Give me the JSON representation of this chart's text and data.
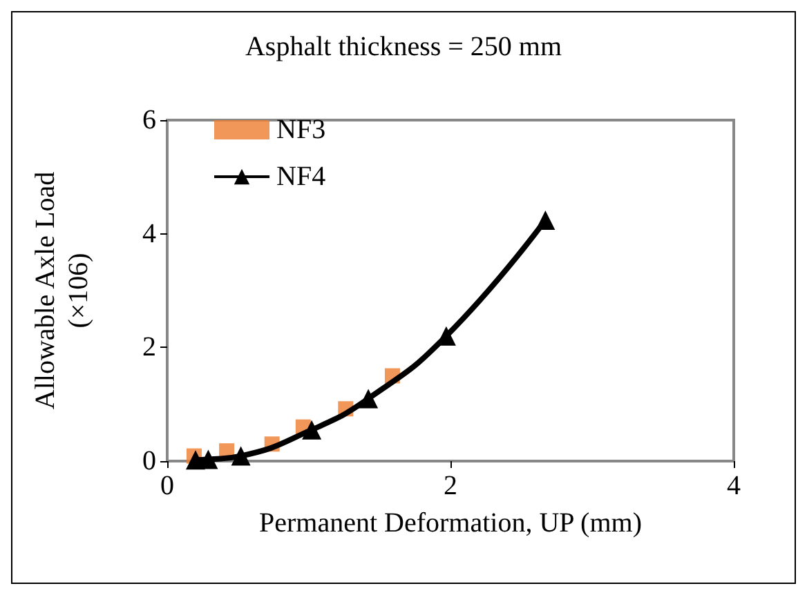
{
  "chart_data": {
    "type": "scatter",
    "title": "Asphalt thickness = 250 mm",
    "xlabel": "Permanent Deformation, UP (mm)",
    "ylabel": "Allowable Axle Load\n(×106)",
    "series": [
      {
        "name": "NF3",
        "marker": "square",
        "color": "#ed7d31",
        "x": [
          0.19,
          0.42,
          0.74,
          0.96,
          1.26,
          1.59
        ],
        "values": [
          0.09,
          0.18,
          0.3,
          0.6,
          0.92,
          1.5
        ]
      },
      {
        "name": "NF4",
        "type": "line",
        "marker": "triangle",
        "color": "#000000",
        "x": [
          0.2,
          0.29,
          0.52,
          1.02,
          1.42,
          1.97,
          2.67
        ],
        "values": [
          0.02,
          0.03,
          0.09,
          0.55,
          1.1,
          2.2,
          4.24
        ]
      }
    ],
    "xlim": [
      0,
      4
    ],
    "xticks": [
      0,
      2,
      4
    ],
    "ylim": [
      0,
      6
    ],
    "yticks": [
      0,
      2,
      4,
      6
    ],
    "grid": false,
    "legend": "top left"
  }
}
